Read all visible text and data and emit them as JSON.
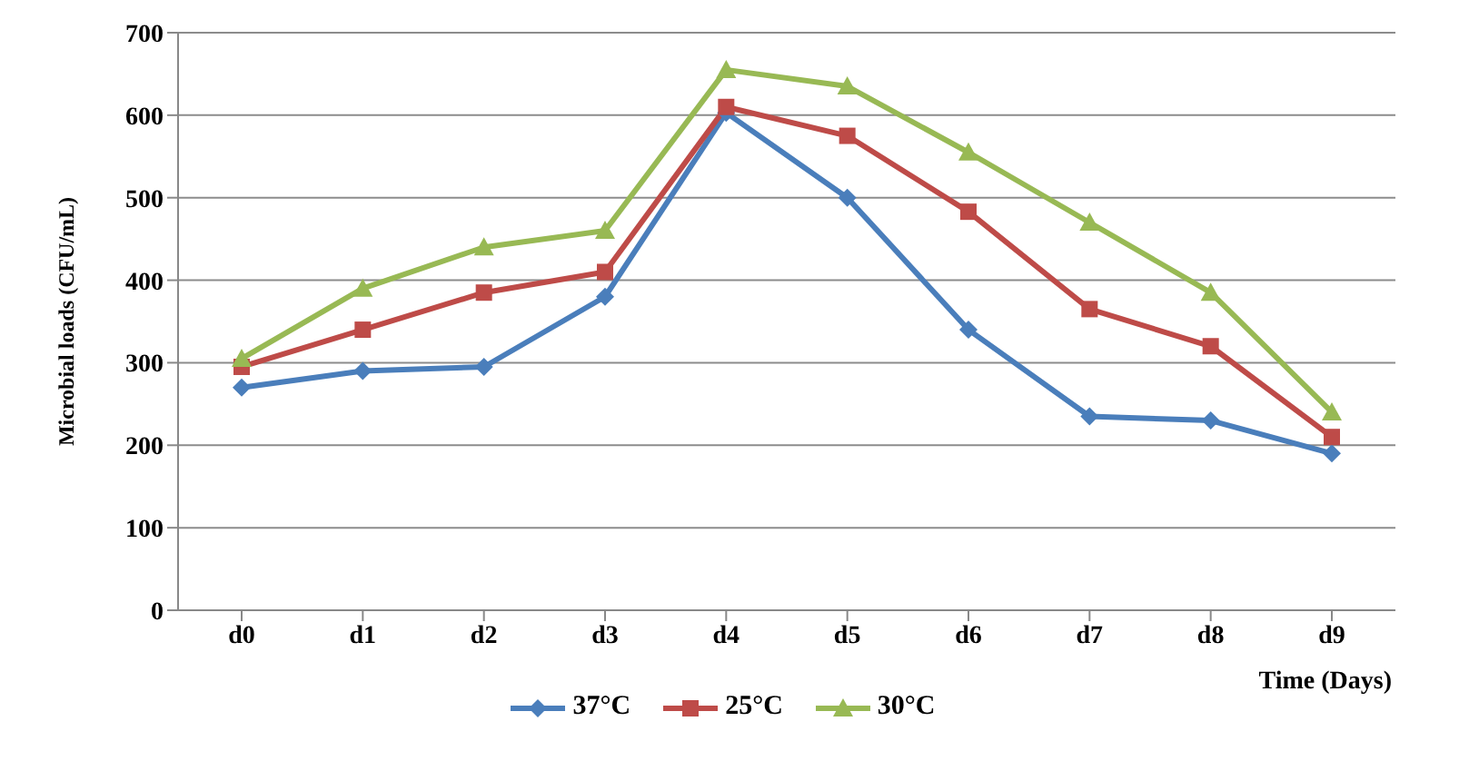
{
  "chart_data": {
    "type": "line",
    "ylabel": "Microbial loads (CFU/mL)",
    "xlabel": "Time (Days)",
    "categories": [
      "d0",
      "d1",
      "d2",
      "d3",
      "d4",
      "d5",
      "d6",
      "d7",
      "d8",
      "d9"
    ],
    "series": [
      {
        "name": "37°C",
        "color": "#4a7ebb",
        "marker": "diamond",
        "values": [
          270,
          290,
          295,
          380,
          603,
          500,
          340,
          235,
          230,
          190
        ]
      },
      {
        "name": "25°C",
        "color": "#be4b48",
        "marker": "square",
        "values": [
          295,
          340,
          385,
          410,
          610,
          575,
          483,
          365,
          320,
          210
        ]
      },
      {
        "name": "30°C",
        "color": "#98b954",
        "marker": "triangle",
        "values": [
          305,
          390,
          440,
          460,
          655,
          635,
          555,
          470,
          385,
          240
        ]
      }
    ],
    "ylim": [
      0,
      700
    ],
    "yticks": [
      0,
      100,
      200,
      300,
      400,
      500,
      600,
      700
    ],
    "grid": "y",
    "legend": "bottom",
    "line_style": "solid"
  }
}
